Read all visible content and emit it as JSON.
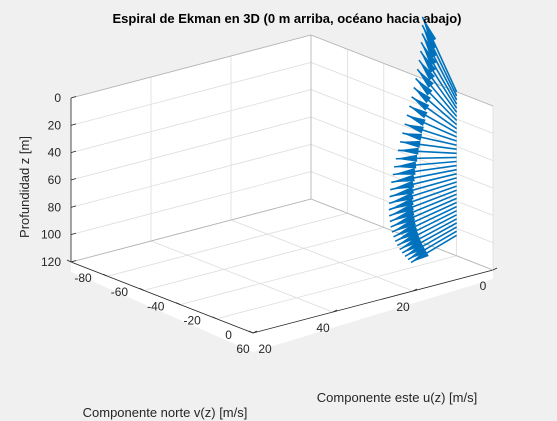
{
  "chart_data": {
    "type": "line",
    "subtype": "3d-quiver",
    "title": "Espiral de Ekman en 3D (0 m arriba, océano hacia abajo)",
    "xlabel": "Componente este u(z) [m/s]",
    "ylabel": "Componente norte v(z) [m/s]",
    "zlabel": "Profundidad z [m]",
    "xlim": [
      -80,
      20
    ],
    "ylim": [
      0,
      60
    ],
    "zlim": [
      0,
      120
    ],
    "z_reversed": true,
    "x_reversed": true,
    "x_ticks": [
      "20",
      "0",
      "-20",
      "-40",
      "-60",
      "-80"
    ],
    "y_ticks": [
      "0",
      "20",
      "40",
      "60"
    ],
    "z_ticks": [
      "0",
      "20",
      "40",
      "60",
      "80",
      "100",
      "120"
    ],
    "grid": true,
    "color": "#0072bd",
    "series": [
      {
        "depth": [
          0,
          3,
          6,
          9,
          12,
          15,
          18,
          21,
          24,
          27,
          30,
          33,
          36,
          39,
          42,
          45,
          48,
          51,
          54,
          57,
          60,
          63,
          66,
          69,
          72,
          75,
          78,
          81,
          84,
          87,
          90,
          93,
          96,
          99,
          102,
          105
        ],
        "u": [
          -70.7,
          -67.2,
          -63.6,
          -59.9,
          -56.1,
          -52.3,
          -48.4,
          -44.5,
          -40.7,
          -36.8,
          -33,
          -29.3,
          -25.7,
          -22.1,
          -18.7,
          -15.5,
          -12.3,
          -9.3,
          -6.5,
          -3.8,
          -1.3,
          1,
          3.1,
          5,
          6.7,
          8.2,
          9.5,
          10.6,
          11.5,
          12.2,
          12.7,
          13.1,
          13.2,
          13.2,
          13.1,
          12.8
        ],
        "v": [
          -23.6,
          -22,
          -20.3,
          -18.4,
          -16.5,
          -14.4,
          -12.2,
          -10,
          -7.8,
          -5.5,
          -3.2,
          -0.9,
          1.3,
          3.5,
          5.6,
          7.6,
          9.6,
          11.4,
          13,
          14.6,
          16,
          17.2,
          18.3,
          19.2,
          19.9,
          20.4,
          20.8,
          21,
          21,
          20.9,
          20.6,
          20.2,
          19.6,
          18.9,
          18.1,
          17.2
        ]
      }
    ]
  }
}
